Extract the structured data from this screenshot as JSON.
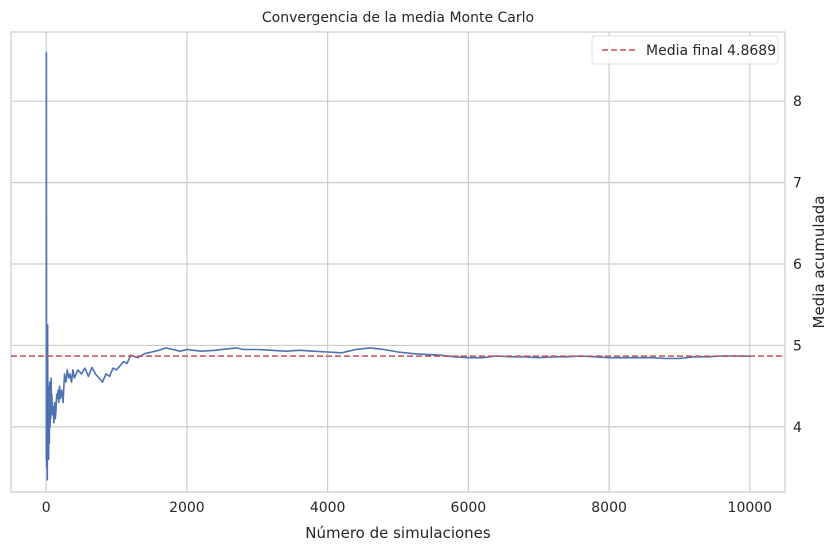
{
  "chart_data": {
    "type": "line",
    "title": "Convergencia de la media Monte Carlo",
    "xlabel": "Número de simulaciones",
    "ylabel": "Media acumulada",
    "xlim": [
      -500,
      10500
    ],
    "ylim": [
      3.2,
      8.85
    ],
    "x_ticks": [
      0,
      2000,
      4000,
      6000,
      8000,
      10000
    ],
    "y_ticks": [
      4,
      5,
      6,
      7,
      8
    ],
    "y_axis_position": "right",
    "grid": true,
    "legend_position": "top-right",
    "series": [
      {
        "color": "#4c72b0",
        "x": [
          1,
          3,
          5,
          8,
          12,
          16,
          20,
          25,
          30,
          35,
          40,
          45,
          50,
          55,
          60,
          65,
          70,
          75,
          80,
          90,
          100,
          110,
          120,
          130,
          140,
          150,
          160,
          170,
          180,
          190,
          200,
          220,
          240,
          260,
          280,
          300,
          320,
          340,
          360,
          380,
          400,
          450,
          500,
          550,
          600,
          650,
          700,
          750,
          800,
          850,
          900,
          950,
          1000,
          1050,
          1100,
          1150,
          1200,
          1300,
          1400,
          1500,
          1600,
          1700,
          1800,
          1900,
          2000,
          2200,
          2400,
          2600,
          2700,
          2800,
          3000,
          3200,
          3400,
          3600,
          3800,
          4000,
          4200,
          4400,
          4600,
          4800,
          5000,
          5200,
          5400,
          5600,
          5800,
          6000,
          6200,
          6400,
          6600,
          6800,
          7000,
          7200,
          7400,
          7600,
          7800,
          8000,
          8200,
          8400,
          8600,
          8800,
          9000,
          9200,
          9400,
          9600,
          9800,
          10000
        ],
        "y": [
          3.6,
          8.6,
          5.0,
          3.5,
          4.3,
          3.35,
          5.25,
          3.9,
          4.5,
          3.6,
          4.3,
          3.8,
          4.55,
          4.0,
          4.4,
          4.1,
          4.6,
          4.2,
          4.4,
          4.15,
          4.25,
          4.05,
          4.3,
          4.1,
          4.2,
          4.4,
          4.35,
          4.45,
          4.3,
          4.5,
          4.35,
          4.45,
          4.3,
          4.65,
          4.55,
          4.7,
          4.6,
          4.65,
          4.55,
          4.7,
          4.6,
          4.7,
          4.65,
          4.72,
          4.62,
          4.73,
          4.65,
          4.6,
          4.55,
          4.65,
          4.62,
          4.72,
          4.7,
          4.75,
          4.8,
          4.78,
          4.88,
          4.85,
          4.9,
          4.92,
          4.94,
          4.97,
          4.95,
          4.93,
          4.95,
          4.93,
          4.94,
          4.96,
          4.97,
          4.95,
          4.95,
          4.94,
          4.93,
          4.94,
          4.93,
          4.92,
          4.91,
          4.95,
          4.97,
          4.95,
          4.92,
          4.9,
          4.89,
          4.88,
          4.86,
          4.85,
          4.85,
          4.87,
          4.86,
          4.86,
          4.85,
          4.86,
          4.86,
          4.87,
          4.86,
          4.85,
          4.85,
          4.85,
          4.85,
          4.84,
          4.84,
          4.86,
          4.86,
          4.87,
          4.87,
          4.868
        ]
      }
    ],
    "reference_line": {
      "value": 4.8689,
      "label": "Media final 4.8689",
      "color": "#c44e52",
      "style": "dashed"
    }
  }
}
